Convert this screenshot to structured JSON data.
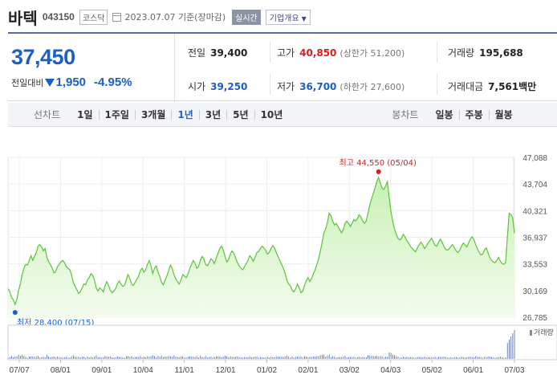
{
  "header": {
    "name": "바텍",
    "code": "043150",
    "market": "코스닥",
    "date": "2023.07.07 기준(장마감)",
    "realtime": "실시간",
    "overview": "기업개요"
  },
  "summary": {
    "price": "37,450",
    "change_label": "전일대비",
    "change": "1,950",
    "change_pct": "-4.95%",
    "prev_close": {
      "label": "전일",
      "value": "39,400"
    },
    "high": {
      "label": "고가",
      "value": "40,850",
      "sub": "(상한가 51,200)"
    },
    "volume": {
      "label": "거래량",
      "value": "195,688"
    },
    "open": {
      "label": "시가",
      "value": "39,250"
    },
    "low": {
      "label": "저가",
      "value": "36,700",
      "sub": "(하한가 27,600)"
    },
    "amount": {
      "label": "거래대금",
      "value": "7,561",
      "unit": "백만"
    }
  },
  "periods": {
    "line_label": "선차트",
    "line_items": [
      "1일",
      "1주일",
      "3개월",
      "1년",
      "3년",
      "5년",
      "10년"
    ],
    "active": "1년",
    "candle_label": "봉차트",
    "candle_items": [
      "일봉",
      "주봉",
      "월봉"
    ]
  },
  "colors": {
    "accent_blue": "#1a5fc8",
    "red": "#e01a1a",
    "line_green": "#5ac43a"
  },
  "chart_data": {
    "type": "area",
    "y_ticks": [
      "47,088",
      "43,704",
      "40,321",
      "36,937",
      "33,553",
      "30,169",
      "26,785"
    ],
    "ylim": [
      26785,
      47088
    ],
    "x_ticks": [
      "07/07",
      "08/01",
      "09/01",
      "10/04",
      "11/01",
      "12/01",
      "01/02",
      "02/01",
      "03/02",
      "04/03",
      "05/02",
      "06/01",
      "07/03"
    ],
    "high_label": "최고 44,550 (05/04)",
    "low_label": "최저 28,400 (07/15)",
    "volume_label": "거래량",
    "series": [
      {
        "values": [
          30400,
          30000,
          29300,
          29000,
          28400,
          29000,
          30200,
          31000,
          32200,
          33000,
          33500,
          33400,
          34000,
          34600,
          34000,
          34500,
          35000,
          35800,
          36000,
          35700,
          35200,
          35500,
          34400,
          33800,
          33500,
          33000,
          32400,
          32600,
          33200,
          33500,
          33800,
          34000,
          33700,
          33200,
          33000,
          32800,
          32200,
          31200,
          30700,
          30300,
          29800,
          30000,
          30500,
          31000,
          30900,
          31500,
          31800,
          32300,
          32100,
          31500,
          30500,
          30100,
          30500,
          30300,
          30000,
          30800,
          31300,
          30800,
          30200,
          29900,
          30100,
          30400,
          31000,
          31400,
          31000,
          30700,
          30800,
          31500,
          32200,
          31700,
          31000,
          30800,
          31200,
          31600,
          32000,
          32700,
          33000,
          32500,
          32800,
          33500,
          34000,
          33300,
          32300,
          33000,
          33300,
          32500,
          32000,
          31200,
          30900,
          31500,
          32000,
          32700,
          33400,
          33000,
          32200,
          31700,
          31300,
          31000,
          31500,
          32200,
          32000,
          31800,
          32300,
          33000,
          33500,
          34000,
          33600,
          33000,
          33200,
          34000,
          34500,
          34200,
          33500,
          33300,
          33700,
          34200,
          34000,
          33600,
          34300,
          34900,
          35500,
          35800,
          35300,
          34500,
          33800,
          34100,
          34800,
          35200,
          34900,
          34300,
          33700,
          33300,
          33000,
          32800,
          33200,
          33600,
          34000,
          34600,
          34300,
          33900,
          34400,
          35000,
          35100,
          35500,
          35800,
          35600,
          35300,
          34800,
          35000,
          35500,
          35900,
          35600,
          35000,
          34500,
          34000,
          33500,
          33000,
          32400,
          31500,
          31000,
          30800,
          30200,
          30000,
          30400,
          31000,
          30500,
          29900,
          30100,
          30800,
          31400,
          31800,
          31300,
          31700,
          32300,
          32800,
          33500,
          34200,
          35200,
          36300,
          37500,
          38000,
          38800,
          40000,
          39700,
          39000,
          38500,
          38700,
          38300,
          37900,
          37500,
          37900,
          38700,
          39000,
          38700,
          38300,
          38700,
          39200,
          39000,
          39300,
          39800,
          39500,
          39000,
          38700,
          39000,
          40000,
          41000,
          41800,
          42500,
          43200,
          44000,
          44550,
          43800,
          43200,
          43000,
          43500,
          44000,
          42000,
          40200,
          39000,
          38000,
          37300,
          36800,
          36600,
          36800,
          37300,
          37000,
          36500,
          36200,
          35800,
          35500,
          35300,
          35100,
          35600,
          36000,
          36300,
          36000,
          35500,
          35800,
          36200,
          36500,
          36800,
          36400,
          35900,
          35800,
          36300,
          36700,
          36300,
          35800,
          35400,
          35300,
          35500,
          35800,
          36000,
          35600,
          35200,
          35000,
          35300,
          35800,
          36200,
          36000,
          35700,
          36200,
          36700,
          37000,
          36700,
          36000,
          35500,
          35000,
          34700,
          34800,
          35300,
          35600,
          35000,
          34400,
          34000,
          33800,
          33700,
          34000,
          34400,
          33900,
          33600,
          33500,
          33700,
          37000,
          40000,
          39800,
          39400,
          37450
        ]
      }
    ]
  }
}
